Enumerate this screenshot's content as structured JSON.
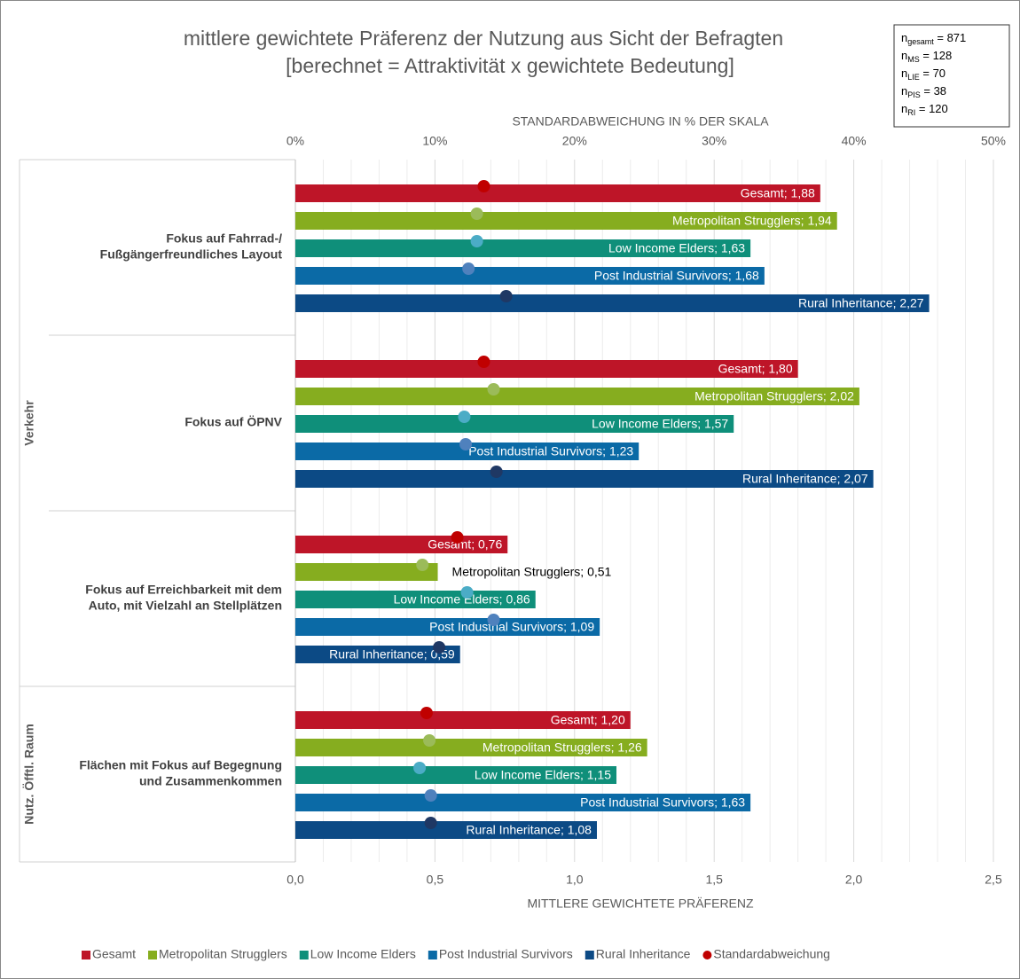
{
  "chart_data": {
    "type": "bar",
    "orientation": "horizontal",
    "title": [
      "mittlere gewichtete Präferenz der Nutzung aus Sicht der Befragten",
      "[berechnet = Attraktivität x gewichtete Bedeutung]"
    ],
    "sample_sizes": [
      {
        "base": "n",
        "sub": "gesamt",
        "rest": "= 871"
      },
      {
        "base": "n",
        "sub": "MS",
        "rest": "= 128"
      },
      {
        "base": "n",
        "sub": "LIE",
        "rest": "= 70"
      },
      {
        "base": "n",
        "sub": "PIS",
        "rest": "= 38"
      },
      {
        "base": "n",
        "sub": "RI",
        "rest": "= 120"
      }
    ],
    "groups": [
      {
        "label": "Verkehr",
        "categories": [
          [
            "Fokus auf Fahrrad-/",
            "Fußgängerfreundliches Layout"
          ],
          [
            "Fokus auf ÖPNV"
          ],
          [
            "Fokus auf Erreichbarkeit mit dem",
            "Auto, mit Vielzahl an Stellplätzen"
          ]
        ]
      },
      {
        "label": "Nutz. Öfftl. Raum",
        "categories": [
          [
            "Flächen mit Fokus auf Begegnung",
            "und Zusammenkommen"
          ]
        ]
      }
    ],
    "series": [
      {
        "name": "Gesamt",
        "color": "#be1528",
        "sd_color": "#c00000",
        "values": [
          1.88,
          1.8,
          0.76,
          1.2
        ],
        "value_labels": [
          "Gesamt; 1,88",
          "Gesamt; 1,80",
          "Gesamt; 0,76",
          "Gesamt; 1,20"
        ],
        "sd_values": [
          13.5,
          13.5,
          11.6,
          9.4
        ]
      },
      {
        "name": "Metropolitan Strugglers",
        "color": "#86ad1f",
        "sd_color": "#9bbb59",
        "values": [
          1.94,
          2.02,
          0.51,
          1.26
        ],
        "value_labels": [
          "Metropolitan Strugglers; 1,94",
          "Metropolitan Strugglers; 2,02",
          "Metropolitan Strugglers; 0,51",
          "Metropolitan Strugglers; 1,26"
        ],
        "sd_values": [
          13.0,
          14.2,
          9.1,
          9.6
        ]
      },
      {
        "name": "Low Income Elders",
        "color": "#0f8f7a",
        "sd_color": "#4bacc6",
        "values": [
          1.63,
          1.57,
          0.86,
          1.15
        ],
        "value_labels": [
          "Low Income Elders; 1,63",
          "Low Income Elders; 1,57",
          "Low Income Elders; 0,86",
          "Low Income Elders; 1,15"
        ],
        "sd_values": [
          13.0,
          12.1,
          12.3,
          8.9
        ]
      },
      {
        "name": "Post Industrial Survivors",
        "color": "#0b6aa6",
        "sd_color": "#4f81bd",
        "values": [
          1.68,
          1.23,
          1.09,
          1.63
        ],
        "value_labels": [
          "Post Industrial Survivors; 1,68",
          "Post Industrial Survivors; 1,23",
          "Post Industrial Survivors; 1,09",
          "Post Industrial Survivors; 1,63"
        ],
        "sd_values": [
          12.4,
          12.2,
          14.2,
          9.7
        ]
      },
      {
        "name": "Rural Inheritance",
        "color": "#0c4a85",
        "sd_color": "#1f3864",
        "values": [
          2.27,
          2.07,
          0.59,
          1.08
        ],
        "value_labels": [
          "Rural Inheritance; 2,27",
          "Rural Inheritance; 2,07",
          "Rural Inheritance; 0,59",
          "Rural Inheritance; 1,08"
        ],
        "sd_values": [
          15.1,
          14.4,
          10.3,
          9.7
        ]
      }
    ],
    "sd": {
      "name": "Standardabweichung",
      "color": "#c00000",
      "axis": "x2"
    },
    "xlabel": "MITTLERE GEWICHTETE PRÄFERENZ",
    "xlim": [
      0,
      2.5
    ],
    "xticks": [
      {
        "value": 0,
        "label": "0,0"
      },
      {
        "value": 0.5,
        "label": "0,5"
      },
      {
        "value": 1,
        "label": "1,0"
      },
      {
        "value": 1.5,
        "label": "1,5"
      },
      {
        "value": 2,
        "label": "2,0"
      },
      {
        "value": 2.5,
        "label": "2,5"
      }
    ],
    "xminorticks": [
      0.1,
      0.2,
      0.3,
      0.4,
      0.6,
      0.7,
      0.8,
      0.9,
      1.1,
      1.2,
      1.3,
      1.4,
      1.6,
      1.7,
      1.8,
      1.9,
      2.1,
      2.2,
      2.3,
      2.4
    ],
    "x2label": "STANDARDABWEICHUNG IN % DER SKALA",
    "x2lim": [
      0,
      50
    ],
    "x2ticks": [
      {
        "value": 0,
        "label": "0%"
      },
      {
        "value": 10,
        "label": "10%"
      },
      {
        "value": 20,
        "label": "20%"
      },
      {
        "value": 30,
        "label": "30%"
      },
      {
        "value": 40,
        "label": "40%"
      },
      {
        "value": 50,
        "label": "50%"
      }
    ],
    "grid": true,
    "legend": "bottom"
  }
}
